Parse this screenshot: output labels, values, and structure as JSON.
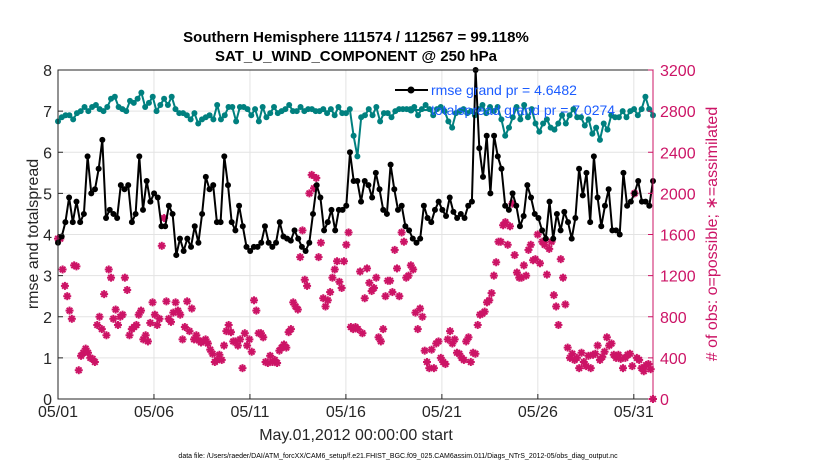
{
  "chart_data": {
    "type": "line",
    "title": "Southern Hemisphere 111574 / 112567 = 99.118%",
    "subtitle": "SAT_U_WIND_COMPONENT @ 250 hPa",
    "xlabel": "May.01,2012 00:00:00 start",
    "ylabel_left": "rmse and totalspread",
    "ylabel_right": "# of obs: o=possible; ∗=assimilated",
    "x_tick_labels": [
      "05/01",
      "05/06",
      "05/11",
      "05/16",
      "05/21",
      "05/26",
      "05/31"
    ],
    "x_ticks_day": [
      1,
      6,
      11,
      16,
      21,
      26,
      31
    ],
    "xlim": [
      1,
      32
    ],
    "ylim_left": [
      0,
      8
    ],
    "y_ticks_left": [
      "0",
      "1",
      "2",
      "3",
      "4",
      "5",
      "6",
      "7",
      "8"
    ],
    "ylim_right": [
      0,
      3200
    ],
    "y_ticks_right": [
      "0",
      "400",
      "800",
      "1200",
      "1600",
      "2000",
      "2400",
      "2800",
      "3200"
    ],
    "grid": true,
    "legend_position": "top-right",
    "colors": {
      "rmse": "#000000",
      "totalspread": "#00807f",
      "obs": "#cc1466",
      "legend_text": "#1b5cff",
      "right_axis": "#cc1466"
    },
    "series": [
      {
        "name": "rmse grand pr = 4.6482",
        "axis": "left",
        "values": [
          3.8,
          3.95,
          4.3,
          4.9,
          4.3,
          4.8,
          4.3,
          4.5,
          5.9,
          5.0,
          5.1,
          5.6,
          6.3,
          4.4,
          4.6,
          4.5,
          4.4,
          5.2,
          5.1,
          5.2,
          4.3,
          4.5,
          5.9,
          4.6,
          5.3,
          4.8,
          5.0,
          4.9,
          4.2,
          4.2,
          4.7,
          4.5,
          3.5,
          3.9,
          3.6,
          3.9,
          3.7,
          4.2,
          3.8,
          4.5,
          5.4,
          5.1,
          5.2,
          4.3,
          4.3,
          5.9,
          5.2,
          4.3,
          4.1,
          4.7,
          4.2,
          3.7,
          3.6,
          3.7,
          3.7,
          3.8,
          4.2,
          3.8,
          3.7,
          3.8,
          4.3,
          3.95,
          3.9,
          3.85,
          4.1,
          3.9,
          3.7,
          3.6,
          3.8,
          4.5,
          5.2,
          4.9,
          4.1,
          4.3,
          4.6,
          4.1,
          4.6,
          4.6,
          4.7,
          6.0,
          5.3,
          5.3,
          4.8,
          5.3,
          5.2,
          4.9,
          5.5,
          5.1,
          4.6,
          4.5,
          5.7,
          5.1,
          4.6,
          4.7,
          4.2,
          4.1,
          3.9,
          3.8,
          3.9,
          4.7,
          4.4,
          4.3,
          4.6,
          4.8,
          4.6,
          4.45,
          4.9,
          4.55,
          4.4,
          4.5,
          4.4,
          4.7,
          4.8,
          8.0,
          6.1,
          5.4,
          6.4,
          5.0,
          6.4,
          5.9,
          5.6,
          4.7,
          4.6,
          5.0,
          4.7,
          4.2,
          4.45,
          5.2,
          4.9,
          4.5,
          4.4,
          4.1,
          3.9,
          4.8,
          3.9,
          4.5,
          4.1,
          4.55,
          4.3,
          3.9,
          4.4,
          5.6,
          4.95,
          5.5,
          4.3,
          5.9,
          4.9,
          4.2,
          4.7,
          5.1,
          4.1,
          4.1,
          4.0,
          5.5,
          4.7,
          4.8,
          5.0,
          5.3,
          4.8,
          4.8,
          4.7,
          5.3
        ]
      },
      {
        "name": "totalspread grand pr = 7.0274",
        "axis": "left",
        "values": [
          6.75,
          6.85,
          6.9,
          6.9,
          6.8,
          6.95,
          7.0,
          7.1,
          7.0,
          7.1,
          7.15,
          7.05,
          7.0,
          7.1,
          7.3,
          7.35,
          7.1,
          7.05,
          7.0,
          7.25,
          7.2,
          7.3,
          7.45,
          7.1,
          7.2,
          7.35,
          7.0,
          7.15,
          7.3,
          7.15,
          7.35,
          7.05,
          6.95,
          6.95,
          6.9,
          6.8,
          6.95,
          6.7,
          6.8,
          6.85,
          6.9,
          6.8,
          7.15,
          6.8,
          6.9,
          7.1,
          7.1,
          6.75,
          7.1,
          7.1,
          7.05,
          6.9,
          7.05,
          6.75,
          7.1,
          6.85,
          6.95,
          7.1,
          6.95,
          7.0,
          7.05,
          7.15,
          7.0,
          7.0,
          7.1,
          7.0,
          7.05,
          7.05,
          7.0,
          7.0,
          7.05,
          6.95,
          7.05,
          6.9,
          7.1,
          6.95,
          6.95,
          7.05,
          6.4,
          5.9,
          6.85,
          6.9,
          7.05,
          6.9,
          7.1,
          6.75,
          6.95,
          6.95,
          6.85,
          7.0,
          7.05,
          7.05,
          7.05,
          7.05,
          7.1,
          6.9,
          7.05,
          7.15,
          7.05,
          6.9,
          7.05,
          7.1,
          7.0,
          6.75,
          6.6,
          6.95,
          7.0,
          7.05,
          6.95,
          7.0,
          6.9,
          7.05,
          7.15,
          6.95,
          7.1,
          7.0,
          7.1,
          6.8,
          6.4,
          6.6,
          6.85,
          7.1,
          6.8,
          7.15,
          6.85,
          7.05,
          6.7,
          6.5,
          6.7,
          6.8,
          6.6,
          6.55,
          6.7,
          6.9,
          6.7,
          6.9,
          7.05,
          6.85,
          6.85,
          6.65,
          6.8,
          6.45,
          6.6,
          6.3,
          6.7,
          6.55,
          6.9,
          6.85,
          6.85,
          7.0,
          6.85,
          7.0,
          7.05,
          6.9,
          7.05,
          7.35,
          7.05,
          6.9
        ]
      },
      {
        "name": "assimilated obs",
        "axis": "right",
        "values": [
          1560,
          1560,
          1260,
          1100,
          1000,
          860,
          780,
          1300,
          1290,
          280,
          420,
          450,
          490,
          450,
          400,
          390,
          360,
          720,
          800,
          680,
          1020,
          620,
          1260,
          1180,
          780,
          870,
          720,
          800,
          820,
          1180,
          1060,
          620,
          680,
          700,
          720,
          820,
          860,
          580,
          620,
          560,
          740,
          940,
          820,
          720,
          780,
          1490,
          1760,
          950,
          780,
          750,
          840,
          940,
          860,
          820,
          580,
          700,
          950,
          660,
          880,
          580,
          620,
          570,
          550,
          560,
          580,
          540,
          480,
          440,
          360,
          380,
          430,
          380,
          520,
          660,
          720,
          650,
          560,
          560,
          520,
          580,
          300,
          640,
          520,
          580,
          460,
          960,
          860,
          640,
          640,
          600,
          360,
          350,
          420,
          360,
          380,
          350,
          470,
          500,
          530,
          500,
          650,
          680,
          940,
          900,
          870,
          1380,
          1640,
          1160,
          1100,
          2000,
          2180,
          2050,
          2150,
          1380,
          1520,
          980,
          900,
          960,
          1040,
          1180,
          1260,
          1340,
          1140,
          1080,
          1340,
          1500,
          1620,
          700,
          680,
          700,
          680,
          1240,
          640,
          980,
          1270,
          1130,
          1050,
          1080,
          1180,
          600,
          560,
          680,
          1000,
          1150,
          1150,
          1040,
          1450,
          1270,
          1000,
          1620,
          1530,
          1180,
          1200,
          1300,
          1260,
          840,
          680,
          880,
          800,
          470,
          360,
          300,
          480,
          300,
          540,
          560,
          400,
          360,
          340,
          580,
          660,
          540,
          580,
          450,
          440,
          400,
          380,
          560,
          600,
          360,
          450,
          440,
          720,
          820,
          830,
          850,
          940,
          960,
          1030,
          1200,
          1330,
          1530,
          1530,
          1690,
          1720,
          1500,
          1680,
          1900,
          1400,
          1230,
          1180,
          1180,
          1300,
          1200,
          1450,
          1500,
          1350,
          1360,
          1600,
          1320,
          1530,
          1500,
          1210,
          1460,
          1530,
          1010,
          900,
          720,
          1360,
          1180,
          920,
          500,
          400,
          440,
          380,
          400,
          300,
          450,
          360,
          320,
          420,
          300,
          430,
          440,
          520,
          380,
          410,
          460,
          600,
          520,
          540,
          430,
          400,
          430,
          390,
          300,
          400,
          430,
          440,
          320,
          2000,
          400,
          380,
          300,
          270,
          330,
          340,
          290,
          0
        ]
      }
    ]
  },
  "footer": {
    "data_file": "data file: /Users/raeder/DAI/ATM_forcXX/CAM6_setup/f.e21.FHIST_BGC.f09_025.CAM6assim.011/Diags_NTrS_2012-05/obs_diag_output.nc"
  }
}
